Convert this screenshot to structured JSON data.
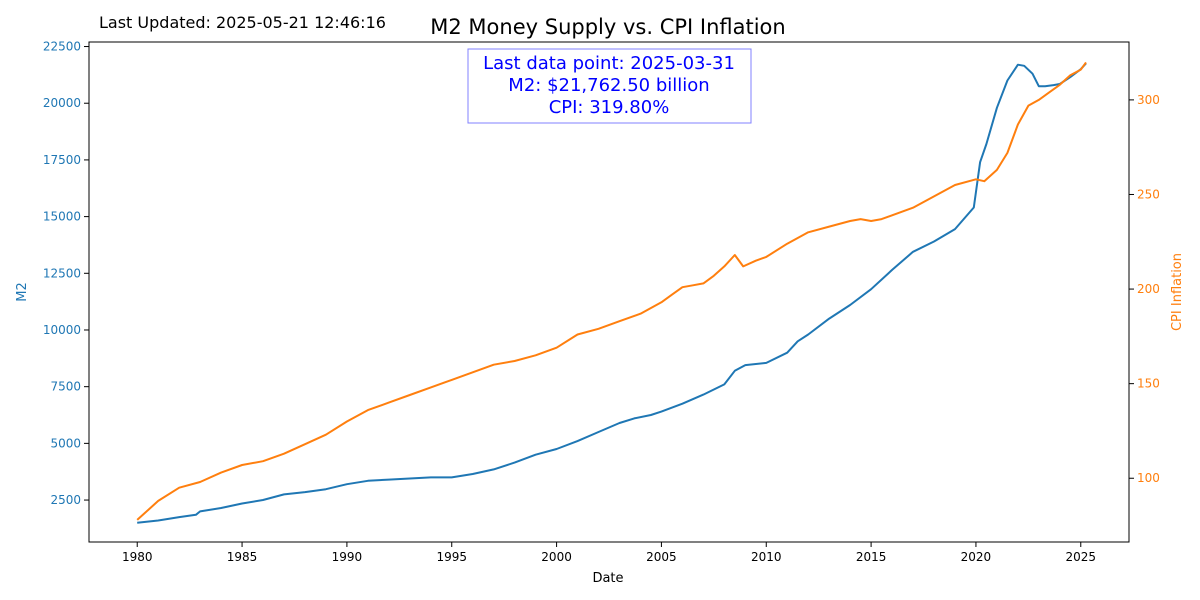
{
  "header": {
    "last_updated": "Last Updated: 2025-05-21 12:46:16"
  },
  "chart_data": {
    "type": "line",
    "title": "M2 Money Supply vs. CPI Inflation",
    "xlabel": "Date",
    "ylabel_left": "M2",
    "ylabel_right": "CPI Inflation",
    "xlim": [
      1977.7,
      2027.3
    ],
    "ylim_left": [
      650,
      22700
    ],
    "ylim_right": [
      66.3,
      330.6
    ],
    "x_ticks": [
      1980,
      1985,
      1990,
      1995,
      2000,
      2005,
      2010,
      2015,
      2020,
      2025
    ],
    "x_tick_labels": [
      "1980",
      "1985",
      "1990",
      "1995",
      "2000",
      "2005",
      "2010",
      "2015",
      "2020",
      "2025"
    ],
    "y_left_ticks": [
      2500,
      5000,
      7500,
      10000,
      12500,
      15000,
      17500,
      20000,
      22500
    ],
    "y_left_tick_labels": [
      "2500",
      "5000",
      "7500",
      "10000",
      "12500",
      "15000",
      "17500",
      "20000",
      "22500"
    ],
    "y_right_ticks": [
      100,
      150,
      200,
      250,
      300
    ],
    "y_right_tick_labels": [
      "100",
      "150",
      "200",
      "250",
      "300"
    ],
    "grid": false,
    "annotation": {
      "lines": [
        "Last data point: 2025-03-31",
        "M2: $21,762.50 billion",
        "CPI: 319.80%"
      ],
      "position": "top-center"
    },
    "colors": {
      "m2": "#1f77b4",
      "cpi": "#ff7f0e",
      "annotation": "#0000ff",
      "axis": "#000000"
    },
    "series": [
      {
        "axis": "left",
        "x": [
          1980.0,
          1981.0,
          1982.0,
          1982.8,
          1983.0,
          1984.0,
          1985.0,
          1986.0,
          1987.0,
          1988.0,
          1989.0,
          1990.0,
          1991.0,
          1992.0,
          1993.0,
          1994.0,
          1995.0,
          1996.0,
          1997.0,
          1998.0,
          1999.0,
          2000.0,
          2001.0,
          2002.0,
          2003.0,
          2003.7,
          2004.5,
          2005.0,
          2006.0,
          2007.0,
          2008.0,
          2008.5,
          2009.0,
          2010.0,
          2011.0,
          2011.5,
          2012.0,
          2013.0,
          2014.0,
          2015.0,
          2016.0,
          2017.0,
          2018.0,
          2019.0,
          2019.9,
          2020.2,
          2020.5,
          2021.0,
          2021.5,
          2022.0,
          2022.3,
          2022.7,
          2023.0,
          2023.3,
          2023.7,
          2024.0,
          2024.5,
          2025.0,
          2025.25
        ],
        "values": [
          1500,
          1600,
          1750,
          1850,
          2000,
          2150,
          2350,
          2500,
          2750,
          2850,
          2980,
          3200,
          3350,
          3400,
          3450,
          3500,
          3500,
          3650,
          3850,
          4150,
          4500,
          4750,
          5100,
          5500,
          5900,
          6100,
          6250,
          6400,
          6750,
          7150,
          7600,
          8200,
          8450,
          8550,
          9000,
          9500,
          9800,
          10500,
          11100,
          11800,
          12650,
          13450,
          13900,
          14450,
          15400,
          17400,
          18200,
          19800,
          21000,
          21700,
          21650,
          21300,
          20750,
          20750,
          20800,
          20850,
          21150,
          21500,
          21762.5
        ]
      },
      {
        "axis": "right",
        "x": [
          1980.0,
          1981.0,
          1982.0,
          1983.0,
          1984.0,
          1985.0,
          1986.0,
          1987.0,
          1988.0,
          1989.0,
          1990.0,
          1991.0,
          1992.0,
          1993.0,
          1994.0,
          1995.0,
          1996.0,
          1997.0,
          1998.0,
          1999.0,
          2000.0,
          2001.0,
          2002.0,
          2003.0,
          2004.0,
          2005.0,
          2005.5,
          2006.0,
          2006.5,
          2007.0,
          2007.5,
          2008.0,
          2008.5,
          2008.9,
          2009.5,
          2010.0,
          2011.0,
          2012.0,
          2013.0,
          2014.0,
          2014.5,
          2015.0,
          2015.5,
          2016.0,
          2017.0,
          2018.0,
          2019.0,
          2020.0,
          2020.4,
          2021.0,
          2021.5,
          2022.0,
          2022.5,
          2023.0,
          2023.5,
          2024.0,
          2024.5,
          2025.0,
          2025.25
        ],
        "values": [
          78,
          88,
          95,
          98,
          103,
          107,
          109,
          113,
          118,
          123,
          130,
          136,
          140,
          144,
          148,
          152,
          156,
          160,
          162,
          165,
          169,
          176,
          179,
          183,
          187,
          193,
          197,
          201,
          202,
          203,
          207,
          212,
          218,
          212,
          215,
          217,
          224,
          230,
          233,
          236,
          237,
          236,
          237,
          239,
          243,
          249,
          255,
          258,
          257,
          263,
          272,
          287,
          297,
          300,
          304,
          308,
          313,
          316,
          319.8
        ]
      }
    ]
  }
}
